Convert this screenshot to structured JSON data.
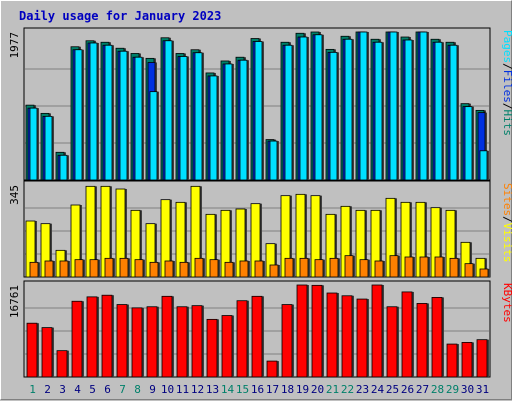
{
  "chart_data": {
    "type": "bar",
    "title": "Daily usage for January 2023",
    "categories": [
      "1",
      "2",
      "3",
      "4",
      "5",
      "6",
      "7",
      "8",
      "9",
      "10",
      "11",
      "12",
      "13",
      "14",
      "15",
      "16",
      "17",
      "18",
      "19",
      "20",
      "21",
      "22",
      "23",
      "24",
      "25",
      "26",
      "27",
      "28",
      "29",
      "30",
      "31"
    ],
    "weekend_days": [
      "1",
      "7",
      "8",
      "14",
      "15",
      "21",
      "22",
      "28",
      "29"
    ],
    "colors": {
      "title": "#0000c0",
      "hits": "#00806a",
      "files": "#0030e0",
      "pages": "#00e0ff",
      "visits": "#ffff00",
      "sites": "#ff8000",
      "kbytes": "#ff0000",
      "weekend_label": "#00806a",
      "weekday_label": "#000080"
    },
    "panels": [
      {
        "id": "requests",
        "max_label": "1977",
        "ylim": [
          0,
          1977
        ],
        "legend_parts": [
          {
            "text": "Pages",
            "color": "#00e0ff"
          },
          {
            "text": "/",
            "color": "#000000"
          },
          {
            "text": "Files",
            "color": "#0030e0"
          },
          {
            "text": "/",
            "color": "#000000"
          },
          {
            "text": "Hits",
            "color": "#00806a"
          }
        ],
        "series": [
          {
            "name": "Hits",
            "values": [
              1000,
              890,
              370,
              1780,
              1860,
              1840,
              1760,
              1690,
              1625,
              1900,
              1690,
              1740,
              1430,
              1590,
              1640,
              1890,
              540,
              1840,
              1960,
              1980,
              1745,
              1920,
              2050,
              1880,
              2070,
              1910,
              2060,
              1880,
              1840,
              1020,
              930
            ]
          },
          {
            "name": "Files",
            "values": [
              960,
              850,
              330,
              1740,
              1830,
              1800,
              1720,
              1640,
              1570,
              1860,
              1650,
              1700,
              1390,
              1550,
              1600,
              1850,
              520,
              1800,
              1910,
              1940,
              1705,
              1880,
              2010,
              1840,
              2030,
              1870,
              2020,
              1840,
              1800,
              980,
              900
            ]
          },
          {
            "name": "Pages",
            "values": [
              960,
              850,
              330,
              1740,
              1830,
              1800,
              1720,
              1640,
              1180,
              1860,
              1650,
              1700,
              1390,
              1550,
              1600,
              1850,
              520,
              1800,
              1910,
              1940,
              1705,
              1880,
              2010,
              1840,
              2030,
              1870,
              2020,
              1840,
              1800,
              980,
              390
            ]
          }
        ]
      },
      {
        "id": "visitors",
        "max_label": "345",
        "ylim": [
          0,
          345
        ],
        "legend_parts": [
          {
            "text": "Sites",
            "color": "#ff8000"
          },
          {
            "text": "/",
            "color": "#000000"
          },
          {
            "text": "Visits",
            "color": "#ffff00"
          }
        ],
        "series": [
          {
            "name": "Visits",
            "values": [
              210,
              200,
              100,
              270,
              340,
              340,
              330,
              250,
              200,
              290,
              280,
              340,
              235,
              250,
              255,
              275,
              125,
              305,
              310,
              305,
              235,
              265,
              250,
              250,
              295,
              280,
              280,
              260,
              250,
              130,
              70
            ]
          },
          {
            "name": "Sites",
            "values": [
              55,
              60,
              60,
              65,
              65,
              70,
              70,
              65,
              55,
              60,
              55,
              70,
              65,
              55,
              60,
              60,
              45,
              70,
              70,
              65,
              70,
              80,
              65,
              60,
              80,
              75,
              75,
              75,
              70,
              50,
              30
            ]
          }
        ]
      },
      {
        "id": "kbytes",
        "max_label": "16761",
        "ylim": [
          0,
          16761
        ],
        "legend_parts": [
          {
            "text": "KBytes",
            "color": "#ff0000"
          }
        ],
        "series": [
          {
            "name": "KBytes",
            "values": [
              9800,
              9000,
              4800,
              13800,
              14600,
              14900,
              13200,
              12600,
              12800,
              14700,
              12800,
              13000,
              10500,
              11200,
              13900,
              14700,
              2900,
              13200,
              17000,
              16700,
              15300,
              14800,
              14200,
              17000,
              12800,
              15500,
              13400,
              14500,
              6000,
              6300,
              6800
            ]
          }
        ]
      }
    ]
  }
}
